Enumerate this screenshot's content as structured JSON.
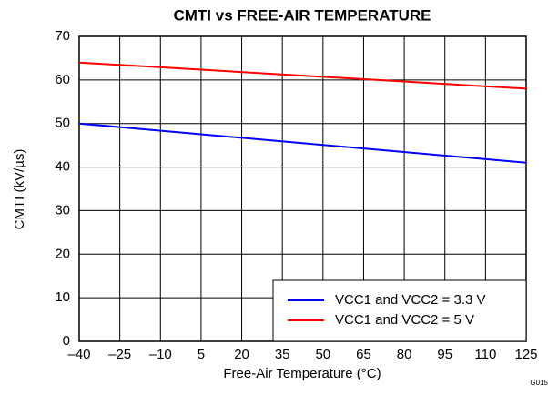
{
  "chart_data": {
    "type": "line",
    "title": "CMTI vs FREE-AIR TEMPERATURE",
    "xlabel": "Free-Air Temperature (°C)",
    "ylabel": "CMTI (kV/µs)",
    "annotation": "G015",
    "x": [
      -40,
      125
    ],
    "series": [
      {
        "name": "VCC1 and VCC2 = 3.3 V",
        "color": "#0000ff",
        "values": [
          50,
          41
        ]
      },
      {
        "name": "VCC1 and VCC2 = 5 V",
        "color": "#ff0000",
        "values": [
          64,
          58
        ]
      }
    ],
    "xlim": [
      -40,
      125
    ],
    "xticks": [
      {
        "value": -40,
        "label": "–40"
      },
      {
        "value": -25,
        "label": "–25"
      },
      {
        "value": -10,
        "label": "–10"
      },
      5,
      20,
      35,
      50,
      65,
      80,
      95,
      110,
      125
    ],
    "ylim": [
      0,
      70
    ],
    "yticks": [
      0,
      10,
      20,
      30,
      40,
      50,
      60,
      70
    ],
    "grid": true,
    "legend": "lower right"
  }
}
